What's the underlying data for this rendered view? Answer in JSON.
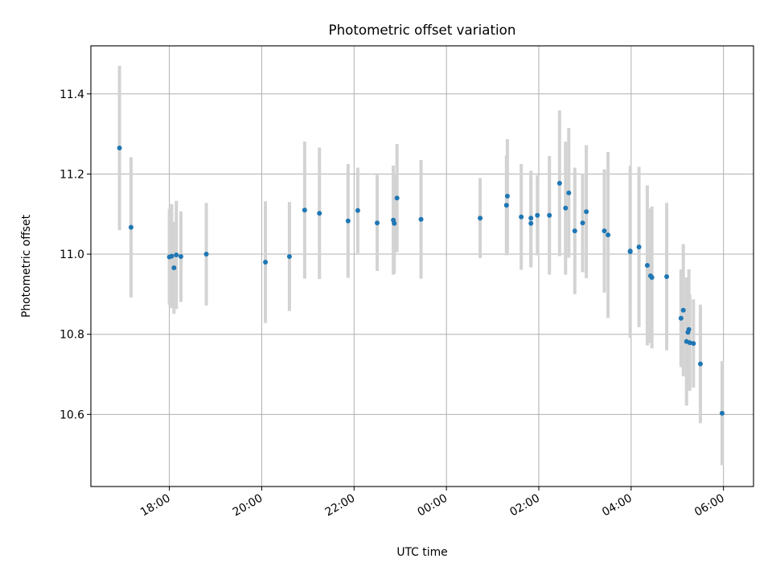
{
  "chart_data": {
    "type": "scatter",
    "title": "Photometric offset variation",
    "xlabel": "UTC time",
    "ylabel": "Photometric offset",
    "grid": true,
    "x_tick_labels": [
      "18:00",
      "20:00",
      "22:00",
      "00:00",
      "02:00",
      "04:00",
      "06:00"
    ],
    "y_tick_labels": [
      "10.6",
      "10.8",
      "11.0",
      "11.2",
      "11.4"
    ],
    "y_ticks": [
      10.6,
      10.8,
      11.0,
      11.2,
      11.4
    ],
    "xlim_hours_from_1800": [
      -1.7,
      12.65
    ],
    "ylim": [
      10.42,
      11.52
    ],
    "colors": {
      "marker": "#1f77b4",
      "errorbar": "#d3d3d3",
      "grid": "#b0b0b0"
    },
    "x_hours_from_1800": [
      -1.08,
      -0.83,
      0.0,
      0.05,
      0.1,
      0.15,
      0.25,
      0.8,
      2.08,
      2.6,
      2.93,
      3.25,
      3.87,
      4.08,
      4.5,
      4.85,
      4.87,
      4.93,
      5.45,
      6.73,
      7.3,
      7.32,
      7.62,
      7.83,
      7.83,
      7.97,
      8.23,
      8.45,
      8.58,
      8.65,
      8.78,
      8.95,
      9.03,
      9.42,
      9.5,
      9.98,
      9.98,
      10.17,
      10.35,
      10.42,
      10.45,
      10.77,
      11.08,
      11.13,
      11.2,
      11.23,
      11.25,
      11.27,
      11.35,
      11.5,
      11.97
    ],
    "values": [
      11.265,
      11.067,
      10.993,
      10.995,
      10.966,
      10.998,
      10.994,
      11.0,
      10.98,
      10.994,
      11.11,
      11.102,
      11.083,
      11.109,
      11.078,
      11.085,
      11.077,
      11.14,
      11.087,
      11.09,
      11.122,
      11.145,
      11.093,
      11.077,
      11.09,
      11.097,
      11.097,
      11.177,
      11.115,
      11.153,
      11.058,
      11.078,
      11.106,
      11.058,
      11.048,
      11.008,
      11.006,
      11.018,
      10.972,
      10.946,
      10.942,
      10.944,
      10.84,
      10.86,
      10.782,
      10.805,
      10.812,
      10.779,
      10.777,
      10.726,
      10.603
    ],
    "errors": [
      0.205,
      0.175,
      0.12,
      0.13,
      0.115,
      0.135,
      0.113,
      0.128,
      0.152,
      0.136,
      0.171,
      0.164,
      0.142,
      0.107,
      0.12,
      0.136,
      0.125,
      0.135,
      0.148,
      0.1,
      0.125,
      0.142,
      0.132,
      0.11,
      0.118,
      0.1,
      0.148,
      0.182,
      0.166,
      0.162,
      0.158,
      0.123,
      0.166,
      0.154,
      0.207,
      0.14,
      0.215,
      0.2,
      0.2,
      0.168,
      0.177,
      0.184,
      0.122,
      0.165,
      0.16,
      0.113,
      0.15,
      0.12,
      0.11,
      0.148,
      0.13
    ]
  }
}
